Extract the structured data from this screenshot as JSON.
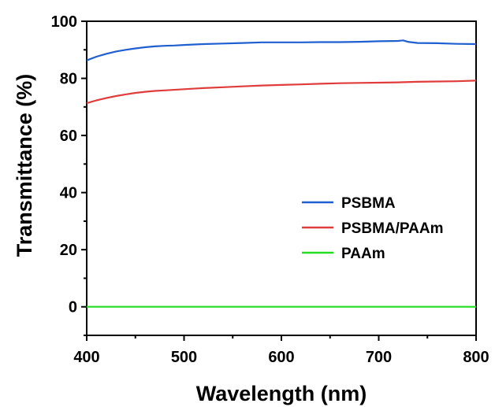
{
  "chart_data": {
    "type": "line",
    "title": "",
    "xlabel": "Wavelength (nm)",
    "ylabel": "Transmittance (%)",
    "xlim": [
      400,
      800
    ],
    "ylim": [
      -10,
      100
    ],
    "xticks": [
      400,
      500,
      600,
      700,
      800
    ],
    "xtick_labels": [
      "400",
      "500",
      "600",
      "700",
      "800"
    ],
    "yticks": [
      0,
      20,
      40,
      60,
      80,
      100
    ],
    "ytick_labels": [
      "0",
      "20",
      "40",
      "60",
      "80",
      "100"
    ],
    "grid": false,
    "legend_position": "center-right",
    "series": [
      {
        "name": "PSBMA",
        "color": "#1f5fd0",
        "x": [
          400,
          410,
          420,
          430,
          440,
          450,
          460,
          470,
          480,
          490,
          500,
          520,
          540,
          560,
          580,
          600,
          620,
          640,
          660,
          680,
          700,
          720,
          725,
          730,
          740,
          760,
          780,
          800
        ],
        "y": [
          86.3,
          87.6,
          88.6,
          89.4,
          90.0,
          90.5,
          90.9,
          91.2,
          91.4,
          91.5,
          91.7,
          92.0,
          92.2,
          92.4,
          92.6,
          92.6,
          92.6,
          92.7,
          92.7,
          92.8,
          93.0,
          93.1,
          93.3,
          92.8,
          92.4,
          92.3,
          92.1,
          92.0
        ]
      },
      {
        "name": "PSBMA/PAAm",
        "color": "#e03c3c",
        "x": [
          400,
          410,
          420,
          430,
          440,
          450,
          460,
          470,
          480,
          500,
          520,
          540,
          560,
          580,
          600,
          620,
          640,
          660,
          680,
          700,
          720,
          740,
          760,
          780,
          800
        ],
        "y": [
          71.3,
          72.3,
          73.1,
          73.8,
          74.4,
          74.9,
          75.3,
          75.6,
          75.8,
          76.2,
          76.6,
          76.9,
          77.2,
          77.5,
          77.7,
          77.9,
          78.1,
          78.3,
          78.4,
          78.5,
          78.6,
          78.8,
          78.9,
          79.0,
          79.2
        ]
      },
      {
        "name": "PAAm",
        "color": "#22dd22",
        "x": [
          400,
          500,
          600,
          700,
          800
        ],
        "y": [
          0,
          0,
          0,
          0,
          0
        ]
      }
    ]
  }
}
